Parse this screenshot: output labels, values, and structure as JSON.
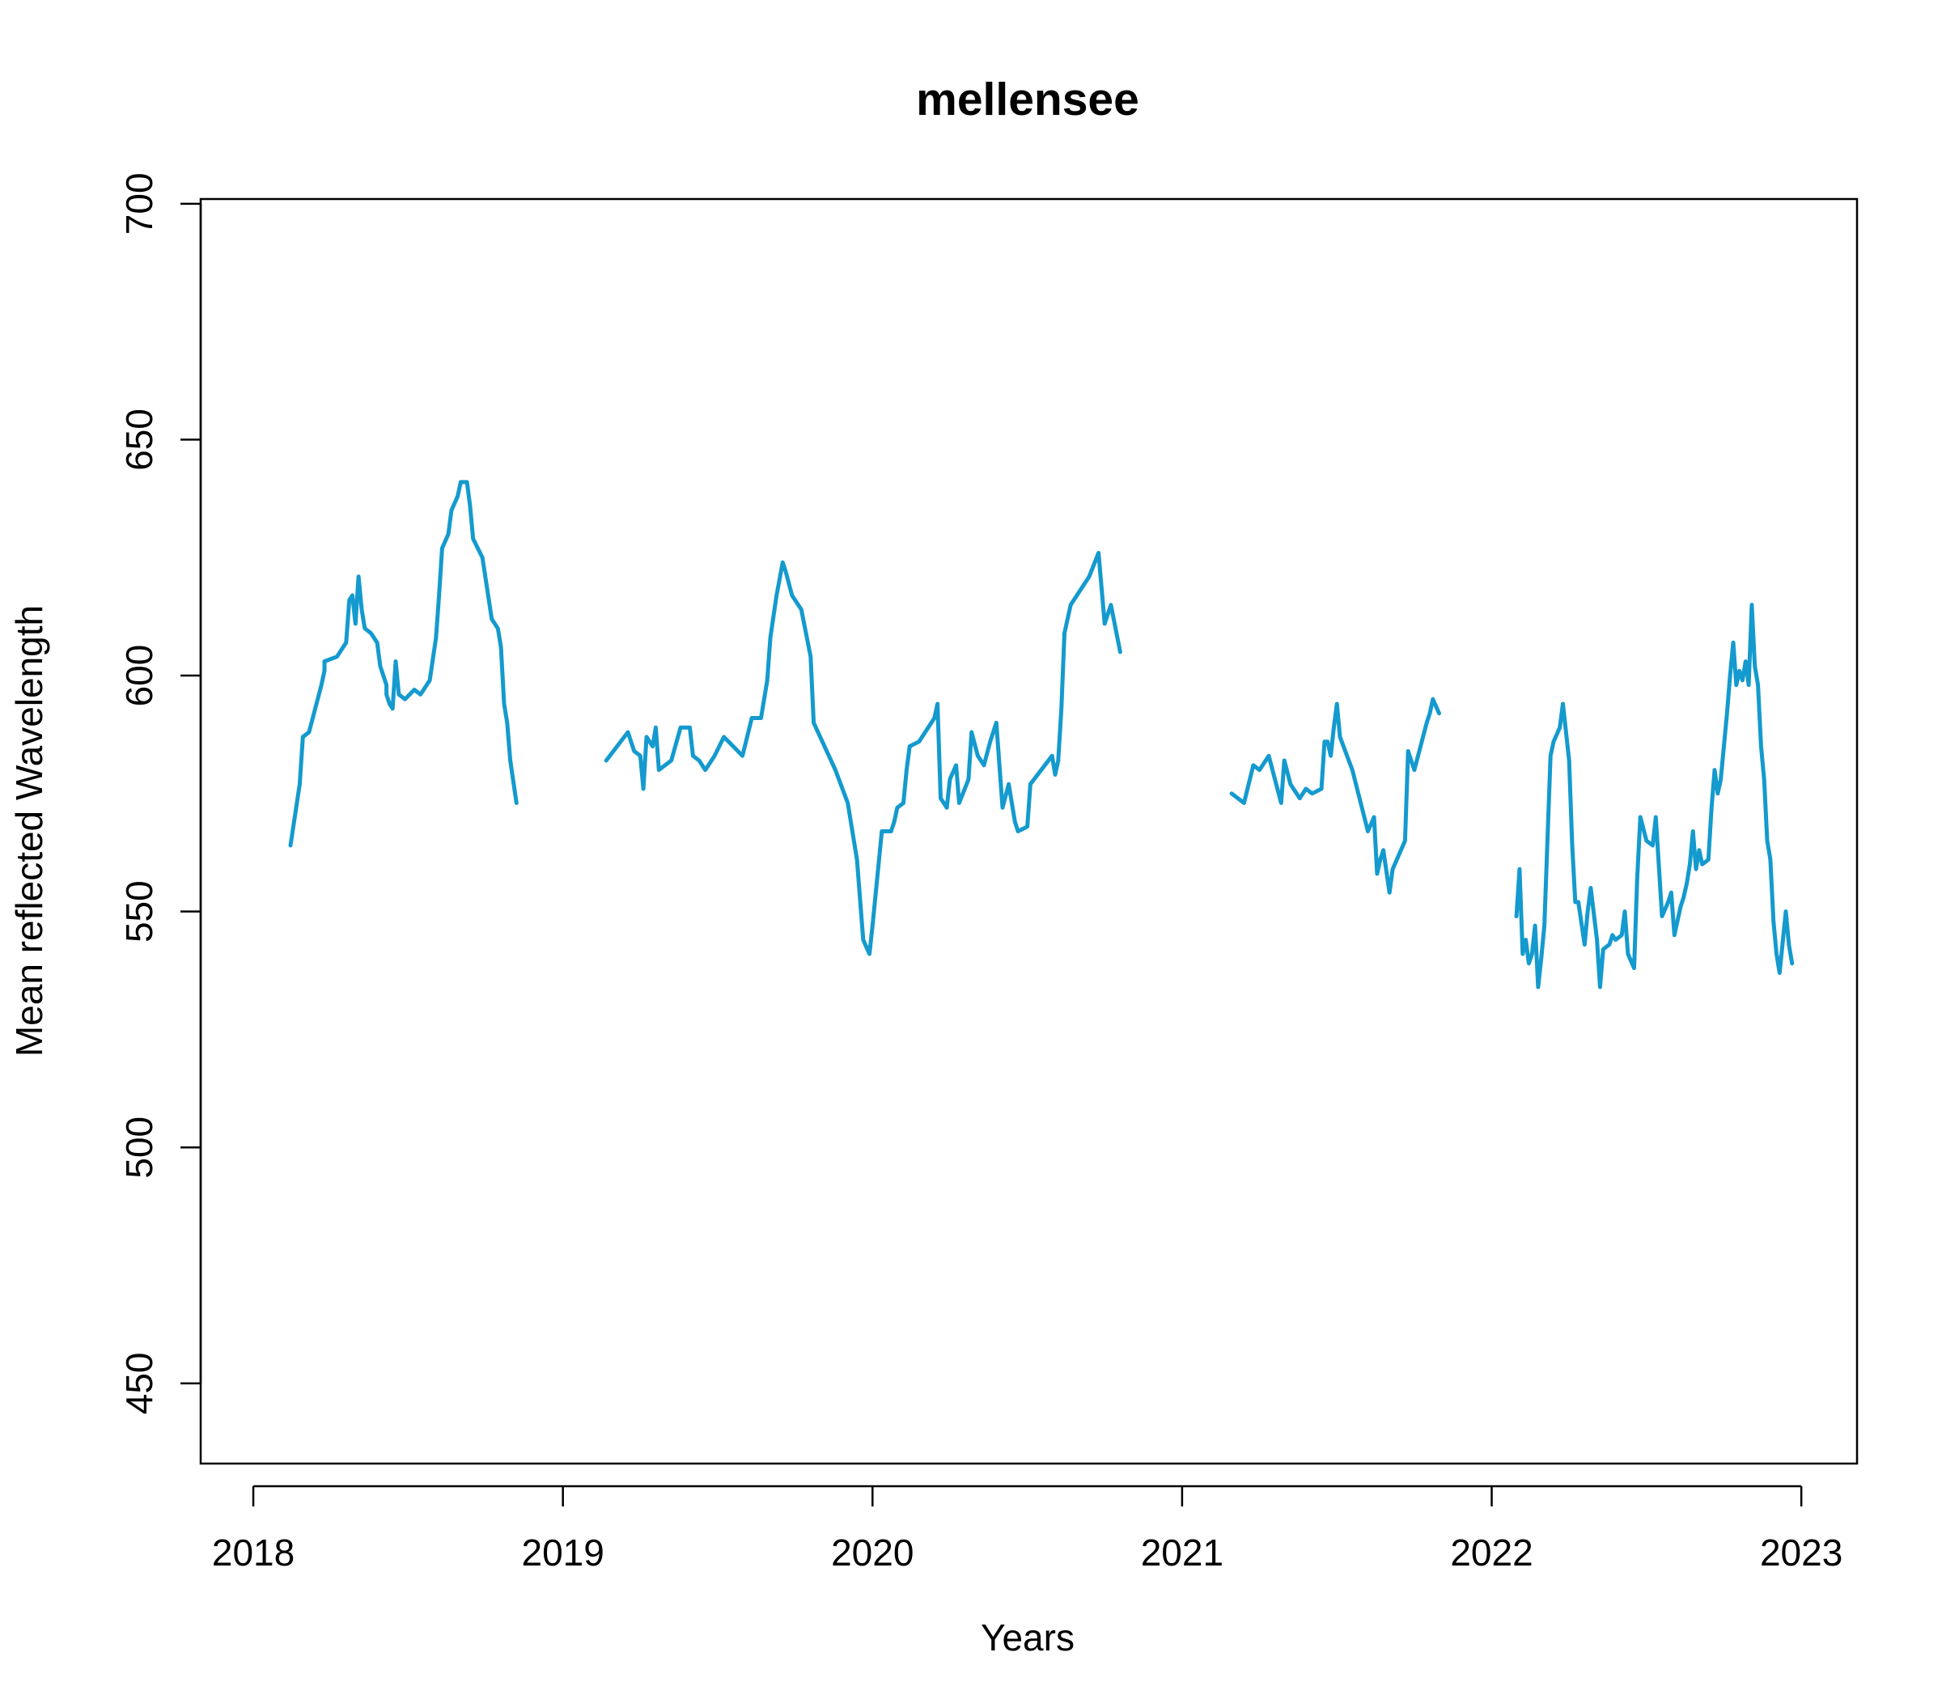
{
  "chart_data": {
    "type": "line",
    "title": "mellensee",
    "xlabel": "Years",
    "ylabel": "Mean reflected Wavelength",
    "xlim": [
      2017.83,
      2023.18
    ],
    "ylim": [
      433,
      701
    ],
    "x_ticks": [
      2018,
      2019,
      2020,
      2021,
      2022,
      2023
    ],
    "x_tick_labels": [
      "2018",
      "2019",
      "2020",
      "2021",
      "2022",
      "2023"
    ],
    "y_ticks": [
      450,
      500,
      550,
      600,
      650,
      700
    ],
    "y_tick_labels": [
      "450",
      "500",
      "550",
      "600",
      "650",
      "700"
    ],
    "grid": false,
    "legend": "none",
    "color": "#149ACE",
    "series": [
      {
        "segments": [
          [
            [
              2018.12,
              564
            ],
            [
              2018.15,
              577
            ],
            [
              2018.16,
              587
            ],
            [
              2018.18,
              588
            ],
            [
              2018.22,
              598
            ],
            [
              2018.23,
              601
            ],
            [
              2018.23,
              603
            ],
            [
              2018.27,
              604
            ],
            [
              2018.29,
              606
            ],
            [
              2018.3,
              607
            ],
            [
              2018.31,
              616
            ],
            [
              2018.32,
              617
            ],
            [
              2018.33,
              611
            ],
            [
              2018.34,
              621
            ],
            [
              2018.35,
              614
            ],
            [
              2018.36,
              610
            ],
            [
              2018.38,
              609
            ],
            [
              2018.4,
              607
            ],
            [
              2018.41,
              602
            ],
            [
              2018.43,
              598
            ],
            [
              2018.43,
              596
            ],
            [
              2018.44,
              594
            ],
            [
              2018.45,
              593
            ],
            [
              2018.46,
              603
            ],
            [
              2018.47,
              596
            ],
            [
              2018.49,
              595
            ],
            [
              2018.52,
              597
            ],
            [
              2018.54,
              596
            ],
            [
              2018.57,
              599
            ],
            [
              2018.59,
              608
            ],
            [
              2018.6,
              617
            ],
            [
              2018.61,
              627
            ],
            [
              2018.63,
              630
            ],
            [
              2018.64,
              635
            ],
            [
              2018.66,
              638
            ],
            [
              2018.67,
              641
            ],
            [
              2018.69,
              641
            ],
            [
              2018.7,
              636
            ],
            [
              2018.71,
              629
            ],
            [
              2018.74,
              625
            ],
            [
              2018.77,
              612
            ],
            [
              2018.79,
              610
            ],
            [
              2018.8,
              606
            ],
            [
              2018.81,
              594
            ],
            [
              2018.82,
              590
            ],
            [
              2018.83,
              582
            ],
            [
              2018.85,
              573
            ]
          ],
          [
            [
              2019.14,
              582
            ],
            [
              2019.21,
              588
            ],
            [
              2019.23,
              584
            ],
            [
              2019.25,
              583
            ],
            [
              2019.26,
              576
            ],
            [
              2019.27,
              587
            ],
            [
              2019.29,
              585
            ],
            [
              2019.3,
              589
            ],
            [
              2019.31,
              580
            ],
            [
              2019.35,
              582
            ],
            [
              2019.38,
              589
            ],
            [
              2019.41,
              589
            ],
            [
              2019.42,
              583
            ],
            [
              2019.44,
              582
            ],
            [
              2019.46,
              580
            ],
            [
              2019.48,
              582
            ],
            [
              2019.49,
              583
            ],
            [
              2019.52,
              587
            ],
            [
              2019.55,
              585
            ],
            [
              2019.58,
              583
            ],
            [
              2019.61,
              591
            ],
            [
              2019.64,
              591
            ],
            [
              2019.66,
              599
            ],
            [
              2019.67,
              608
            ],
            [
              2019.69,
              617
            ],
            [
              2019.71,
              624
            ],
            [
              2019.72,
              622
            ],
            [
              2019.74,
              617
            ],
            [
              2019.77,
              614
            ],
            [
              2019.8,
              604
            ],
            [
              2019.81,
              590
            ],
            [
              2019.88,
              580
            ],
            [
              2019.92,
              573
            ],
            [
              2019.95,
              561
            ],
            [
              2019.97,
              544
            ],
            [
              2019.99,
              541
            ],
            [
              2020,
              547
            ],
            [
              2020.03,
              567
            ],
            [
              2020.06,
              567
            ],
            [
              2020.07,
              569
            ],
            [
              2020.08,
              572
            ],
            [
              2020.1,
              573
            ],
            [
              2020.11,
              580
            ],
            [
              2020.12,
              585
            ],
            [
              2020.15,
              586
            ],
            [
              2020.2,
              591
            ],
            [
              2020.21,
              594
            ],
            [
              2020.22,
              574
            ],
            [
              2020.24,
              572
            ],
            [
              2020.25,
              578
            ],
            [
              2020.27,
              581
            ],
            [
              2020.28,
              573
            ],
            [
              2020.31,
              578
            ],
            [
              2020.32,
              588
            ],
            [
              2020.34,
              583
            ],
            [
              2020.36,
              581
            ],
            [
              2020.38,
              586
            ],
            [
              2020.4,
              590
            ],
            [
              2020.42,
              572
            ],
            [
              2020.44,
              577
            ],
            [
              2020.46,
              569
            ],
            [
              2020.47,
              567
            ],
            [
              2020.5,
              568
            ],
            [
              2020.51,
              577
            ],
            [
              2020.58,
              583
            ],
            [
              2020.59,
              579
            ],
            [
              2020.6,
              582
            ],
            [
              2020.61,
              593
            ],
            [
              2020.62,
              609
            ],
            [
              2020.64,
              615
            ],
            [
              2020.68,
              619
            ],
            [
              2020.7,
              621
            ],
            [
              2020.73,
              626
            ],
            [
              2020.75,
              611
            ],
            [
              2020.77,
              615
            ],
            [
              2020.8,
              605
            ]
          ]
        ]
      },
      {
        "segments": [
          [
            [
              2021.16,
              575
            ],
            [
              2021.2,
              573
            ],
            [
              2021.23,
              581
            ],
            [
              2021.25,
              580
            ],
            [
              2021.28,
              583
            ],
            [
              2021.32,
              573
            ],
            [
              2021.33,
              582
            ],
            [
              2021.35,
              577
            ],
            [
              2021.38,
              574
            ],
            [
              2021.4,
              576
            ],
            [
              2021.42,
              575
            ],
            [
              2021.45,
              576
            ],
            [
              2021.46,
              586
            ],
            [
              2021.47,
              586
            ],
            [
              2021.48,
              583
            ],
            [
              2021.49,
              589
            ],
            [
              2021.5,
              594
            ],
            [
              2021.51,
              587
            ],
            [
              2021.55,
              580
            ],
            [
              2021.6,
              567
            ],
            [
              2021.62,
              570
            ],
            [
              2021.63,
              558
            ],
            [
              2021.64,
              561
            ],
            [
              2021.65,
              563
            ],
            [
              2021.67,
              554
            ],
            [
              2021.68,
              559
            ],
            [
              2021.72,
              565
            ],
            [
              2021.73,
              584
            ],
            [
              2021.75,
              580
            ],
            [
              2021.79,
              590
            ],
            [
              2021.8,
              592
            ],
            [
              2021.81,
              595
            ],
            [
              2021.83,
              592
            ]
          ],
          [
            [
              2022.08,
              549
            ],
            [
              2022.09,
              559
            ],
            [
              2022.1,
              541
            ],
            [
              2022.11,
              544
            ],
            [
              2022.12,
              539
            ],
            [
              2022.13,
              541
            ],
            [
              2022.14,
              547
            ],
            [
              2022.15,
              534
            ],
            [
              2022.16,
              540
            ],
            [
              2022.17,
              547
            ],
            [
              2022.19,
              583
            ],
            [
              2022.2,
              586
            ],
            [
              2022.22,
              589
            ],
            [
              2022.23,
              594
            ],
            [
              2022.25,
              582
            ],
            [
              2022.26,
              564
            ],
            [
              2022.27,
              552
            ],
            [
              2022.28,
              552
            ],
            [
              2022.3,
              543
            ],
            [
              2022.31,
              550
            ],
            [
              2022.32,
              555
            ],
            [
              2022.34,
              544
            ],
            [
              2022.35,
              534
            ],
            [
              2022.36,
              542
            ],
            [
              2022.38,
              543
            ],
            [
              2022.39,
              545
            ],
            [
              2022.4,
              544
            ],
            [
              2022.42,
              545
            ],
            [
              2022.43,
              550
            ],
            [
              2022.44,
              541
            ],
            [
              2022.46,
              538
            ],
            [
              2022.47,
              557
            ],
            [
              2022.48,
              570
            ],
            [
              2022.5,
              565
            ],
            [
              2022.52,
              564
            ],
            [
              2022.53,
              570
            ],
            [
              2022.55,
              549
            ],
            [
              2022.57,
              552
            ],
            [
              2022.58,
              554
            ],
            [
              2022.59,
              545
            ],
            [
              2022.61,
              551
            ],
            [
              2022.62,
              553
            ],
            [
              2022.63,
              556
            ],
            [
              2022.64,
              560
            ],
            [
              2022.65,
              567
            ],
            [
              2022.66,
              559
            ],
            [
              2022.67,
              563
            ],
            [
              2022.68,
              560
            ],
            [
              2022.7,
              561
            ],
            [
              2022.71,
              572
            ],
            [
              2022.72,
              580
            ],
            [
              2022.73,
              575
            ],
            [
              2022.74,
              578
            ],
            [
              2022.76,
              592
            ],
            [
              2022.77,
              600
            ],
            [
              2022.78,
              607
            ],
            [
              2022.79,
              598
            ],
            [
              2022.8,
              601
            ],
            [
              2022.81,
              599
            ],
            [
              2022.82,
              603
            ],
            [
              2022.83,
              598
            ],
            [
              2022.84,
              615
            ],
            [
              2022.85,
              602
            ],
            [
              2022.86,
              598
            ],
            [
              2022.87,
              585
            ],
            [
              2022.88,
              578
            ],
            [
              2022.89,
              565
            ],
            [
              2022.9,
              561
            ],
            [
              2022.91,
              548
            ],
            [
              2022.92,
              541
            ],
            [
              2022.93,
              537
            ],
            [
              2022.95,
              550
            ],
            [
              2022.96,
              543
            ],
            [
              2022.97,
              539
            ]
          ]
        ]
      }
    ]
  }
}
